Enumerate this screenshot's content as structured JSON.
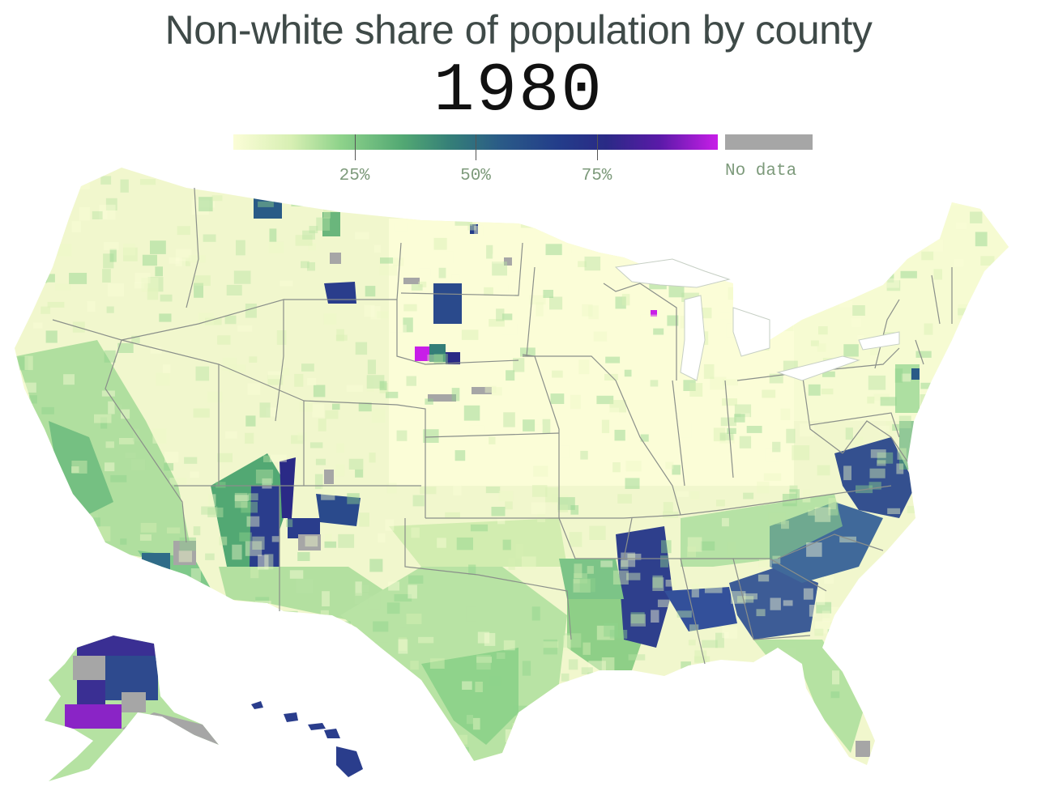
{
  "title": "Non-white share of population by county",
  "year": "1980",
  "legend": {
    "ticks": [
      {
        "label": "25%",
        "value": 25
      },
      {
        "label": "50%",
        "value": 50
      },
      {
        "label": "75%",
        "value": 75
      }
    ],
    "range": [
      0,
      100
    ],
    "nodata_label": "No data",
    "nodata_color": "#a6a6a6",
    "colors": [
      "#fbfdd7",
      "#d7efb3",
      "#8fd38b",
      "#52a873",
      "#2a5b87",
      "#233d8a",
      "#2a2a86",
      "#c81ee8"
    ]
  },
  "map": {
    "type": "choropleth",
    "unit": "county",
    "regions_shown": [
      "contiguous-us",
      "alaska",
      "hawaii"
    ]
  }
}
